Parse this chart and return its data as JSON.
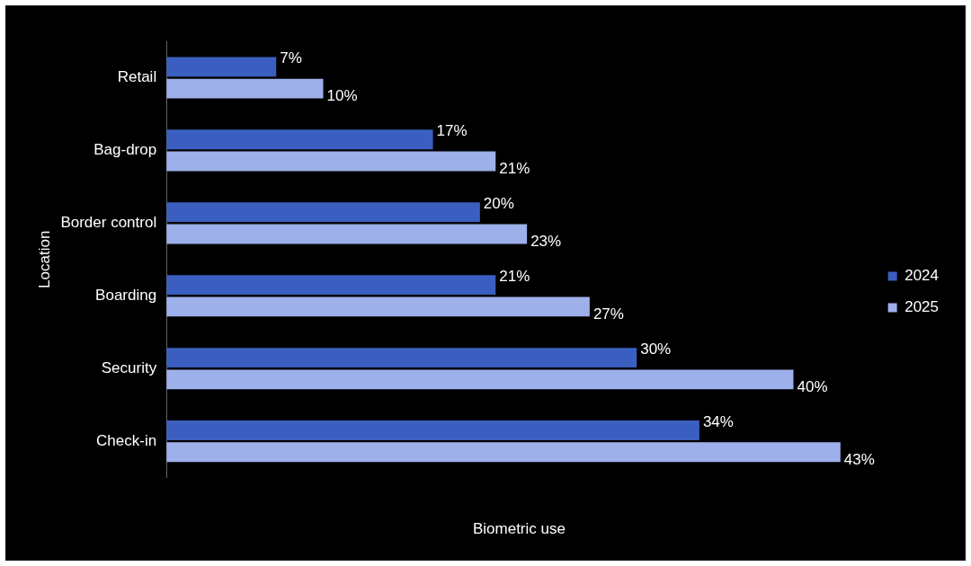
{
  "chart_data": {
    "type": "bar",
    "orientation": "horizontal",
    "xlabel": "Biometric use",
    "ylabel": "Location",
    "categories": [
      "Retail",
      "Bag-drop",
      "Border control",
      "Boarding",
      "Security",
      "Check-in"
    ],
    "series": [
      {
        "name": "2024",
        "color": "#3b5fc0",
        "values": [
          7,
          17,
          20,
          21,
          30,
          34
        ],
        "value_labels": [
          "7%",
          "17%",
          "20%",
          "21%",
          "30%",
          "34%"
        ]
      },
      {
        "name": "2025",
        "color": "#9db0ea",
        "values": [
          10,
          21,
          23,
          27,
          40,
          43
        ],
        "value_labels": [
          "10%",
          "21%",
          "23%",
          "27%",
          "40%",
          "43%"
        ]
      }
    ],
    "legend": "right",
    "grid": false,
    "tick_labels": "y"
  }
}
